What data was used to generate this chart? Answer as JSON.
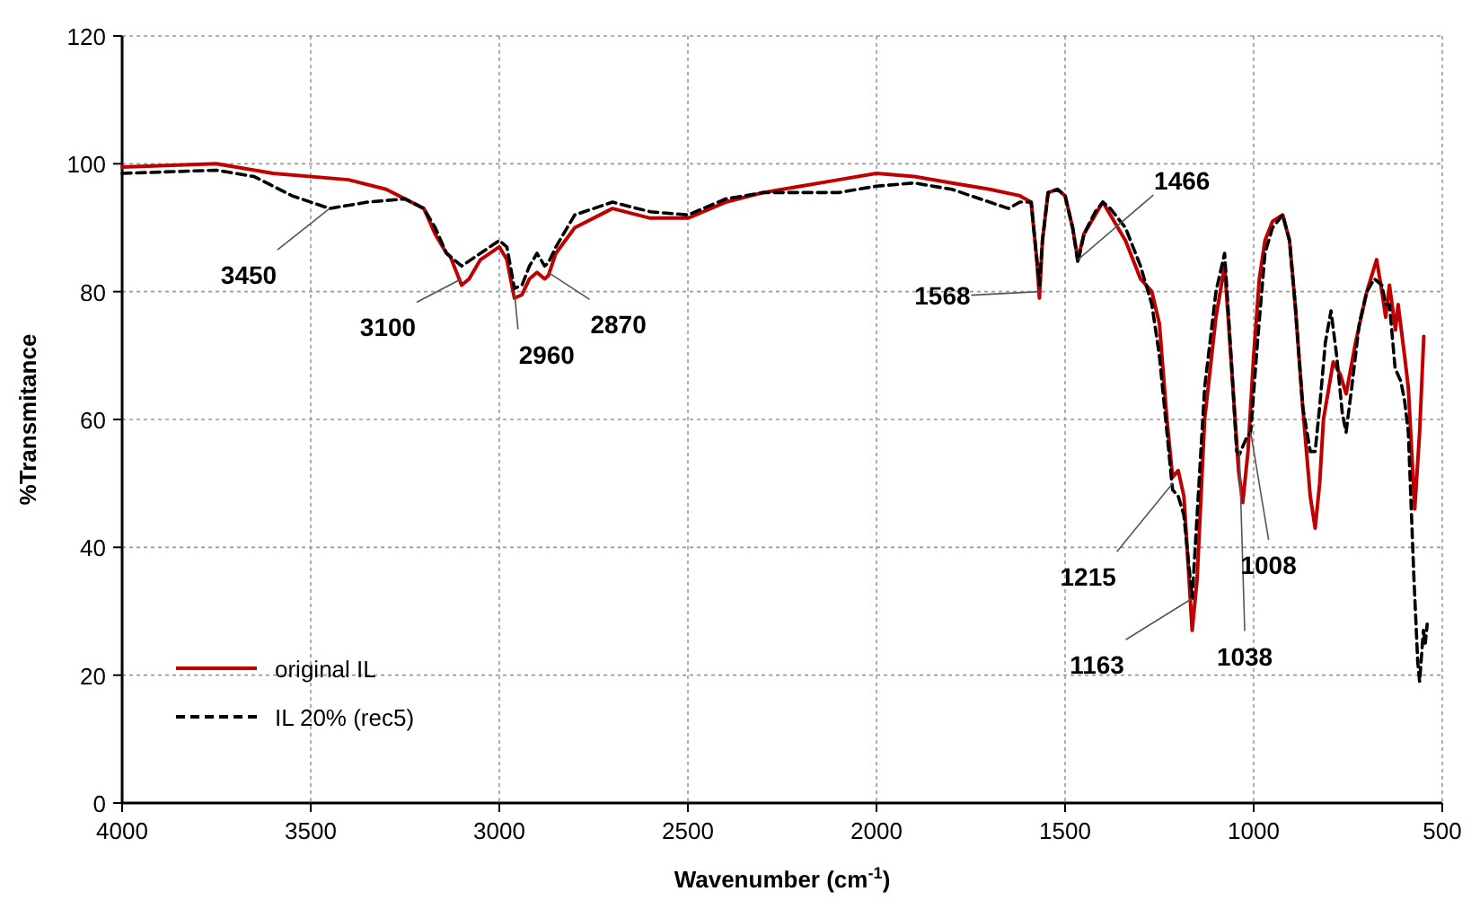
{
  "chart_data": {
    "type": "line",
    "xlabel": "Wavenumber (cm$^{-1}$)",
    "ylabel": "%Transmitance",
    "xlim": [
      4000,
      500
    ],
    "xticks": [
      4000,
      3500,
      3000,
      2500,
      2000,
      1500,
      1000,
      500
    ],
    "ylim": [
      0,
      120
    ],
    "yticks": [
      0,
      20,
      40,
      60,
      80,
      100,
      120
    ],
    "grid": true,
    "legend": "bottom left",
    "series": [
      {
        "name": "original IL",
        "color": "#c00000",
        "line_style": "solid",
        "x": [
          4000,
          3750,
          3600,
          3400,
          3300,
          3200,
          3170,
          3140,
          3130,
          3100,
          3080,
          3050,
          3000,
          2980,
          2960,
          2940,
          2920,
          2900,
          2880,
          2870,
          2850,
          2800,
          2700,
          2600,
          2500,
          2400,
          2300,
          2200,
          2100,
          2000,
          1900,
          1800,
          1700,
          1620,
          1590,
          1575,
          1568,
          1560,
          1545,
          1520,
          1500,
          1480,
          1466,
          1450,
          1420,
          1400,
          1380,
          1340,
          1300,
          1270,
          1250,
          1230,
          1215,
          1200,
          1185,
          1163,
          1150,
          1130,
          1100,
          1077,
          1055,
          1040,
          1029,
          1015,
          1000,
          985,
          970,
          950,
          923,
          905,
          890,
          870,
          850,
          837,
          825,
          815,
          789,
          770,
          755,
          730,
          700,
          674,
          660,
          650,
          640,
          624,
          617,
          600,
          590,
          573,
          560,
          549
        ],
        "values": [
          99.5,
          100,
          98.5,
          97.5,
          96,
          93,
          89,
          86,
          85.5,
          81,
          82,
          85,
          87,
          85,
          79,
          79.5,
          82,
          83,
          82,
          82.5,
          86,
          90,
          93,
          91.5,
          91.5,
          94,
          95.5,
          96.5,
          97.5,
          98.5,
          98,
          97,
          96,
          95,
          94,
          85,
          79,
          88,
          95.5,
          96,
          95,
          90,
          85,
          89,
          92,
          94,
          92,
          88,
          82,
          80,
          75,
          60,
          51,
          52,
          48,
          27,
          35,
          60,
          76,
          84,
          65,
          52,
          47,
          55,
          70,
          82,
          88,
          91,
          92,
          88,
          78,
          62,
          48,
          43,
          50,
          60,
          69,
          67,
          64,
          72,
          80,
          85,
          80,
          76,
          81,
          74,
          78,
          70,
          65,
          46,
          58,
          73
        ]
      },
      {
        "name": "IL 20% (rec5)",
        "color": "#000000",
        "line_style": "dashed",
        "x": [
          4000,
          3750,
          3650,
          3550,
          3450,
          3350,
          3250,
          3200,
          3170,
          3140,
          3120,
          3100,
          3050,
          3000,
          2980,
          2960,
          2940,
          2920,
          2900,
          2880,
          2870,
          2850,
          2800,
          2700,
          2600,
          2500,
          2400,
          2300,
          2200,
          2100,
          2000,
          1900,
          1800,
          1700,
          1650,
          1620,
          1590,
          1575,
          1568,
          1560,
          1545,
          1520,
          1500,
          1480,
          1466,
          1450,
          1420,
          1400,
          1380,
          1340,
          1300,
          1270,
          1250,
          1230,
          1215,
          1200,
          1185,
          1163,
          1150,
          1130,
          1100,
          1077,
          1060,
          1045,
          1038,
          1020,
          1008,
          990,
          970,
          950,
          923,
          905,
          890,
          870,
          850,
          837,
          825,
          810,
          795,
          780,
          765,
          755,
          740,
          720,
          700,
          680,
          660,
          650,
          640,
          625,
          610,
          600,
          590,
          575,
          565,
          560,
          555,
          550,
          545,
          540
        ],
        "values": [
          98.5,
          99,
          98,
          95,
          93,
          94,
          94.5,
          93,
          90,
          86,
          85,
          84,
          86,
          88,
          87,
          80.5,
          81,
          84,
          86,
          84,
          84.5,
          87,
          92,
          94,
          92.5,
          92,
          94.5,
          95.5,
          95.5,
          95.5,
          96.5,
          97,
          96,
          94,
          93,
          94,
          94,
          85,
          81,
          88,
          95.5,
          96,
          95,
          90,
          84.5,
          89,
          92.5,
          94,
          93,
          90,
          84,
          78,
          70,
          58,
          49,
          48,
          45,
          32,
          45,
          65,
          80,
          86,
          70,
          55,
          54.5,
          57,
          58,
          72,
          86,
          90,
          92,
          88,
          78,
          62,
          55,
          55,
          62,
          72,
          77,
          70,
          61,
          58,
          65,
          75,
          80,
          82,
          81,
          78,
          78,
          68,
          66,
          63,
          58,
          35,
          22,
          19,
          23,
          27,
          25,
          28
        ]
      }
    ],
    "annotations": [
      {
        "text": "3450",
        "x": 3450,
        "y": 93
      },
      {
        "text": "3100",
        "x": 3100,
        "y": 82
      },
      {
        "text": "2960",
        "x": 2960,
        "y": 80
      },
      {
        "text": "2870",
        "x": 2870,
        "y": 83
      },
      {
        "text": "1568",
        "x": 1568,
        "y": 80
      },
      {
        "text": "1466",
        "x": 1466,
        "y": 85
      },
      {
        "text": "1215",
        "x": 1215,
        "y": 50
      },
      {
        "text": "1163",
        "x": 1163,
        "y": 32
      },
      {
        "text": "1038",
        "x": 1038,
        "y": 55
      },
      {
        "text": "1008",
        "x": 1008,
        "y": 58
      }
    ]
  }
}
